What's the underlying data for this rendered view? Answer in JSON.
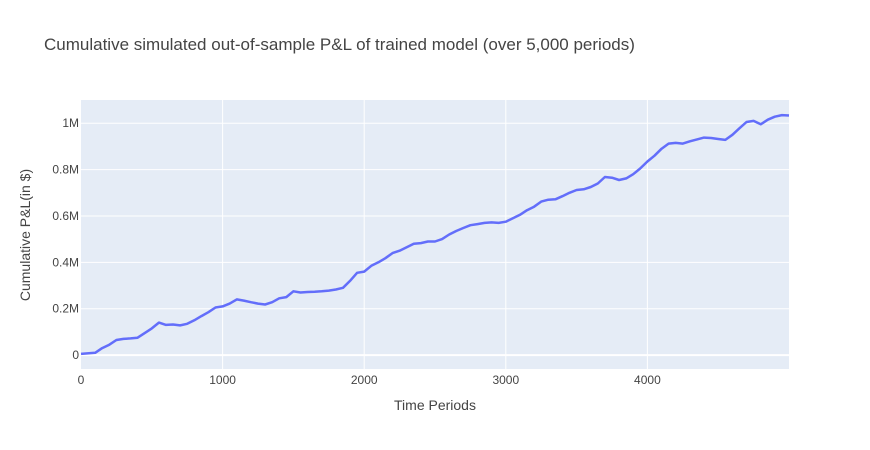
{
  "chart_data": {
    "type": "line",
    "title": "Cumulative simulated out-of-sample P&L of trained model (over 5,000 periods)",
    "xlabel": "Time Periods",
    "ylabel": "Cumulative P&L(in $)",
    "xlim": [
      0,
      5000
    ],
    "ylim": [
      -60000,
      1100000
    ],
    "x_ticks": [
      0,
      1000,
      2000,
      3000,
      4000
    ],
    "x_tick_labels": [
      "0",
      "1000",
      "2000",
      "3000",
      "4000"
    ],
    "y_ticks": [
      0,
      200000,
      400000,
      600000,
      800000,
      1000000
    ],
    "y_tick_labels": [
      "0",
      "0.2M",
      "0.4M",
      "0.6M",
      "0.8M",
      "1M"
    ],
    "grid": true,
    "background_color": "#e5ecf6",
    "line_color": "#636efa",
    "series": [
      {
        "x": [
          0,
          100,
          150,
          200,
          250,
          300,
          350,
          400,
          450,
          500,
          550,
          600,
          650,
          700,
          750,
          800,
          850,
          900,
          950,
          1000,
          1050,
          1100,
          1150,
          1200,
          1250,
          1300,
          1350,
          1400,
          1450,
          1500,
          1550,
          1600,
          1650,
          1700,
          1750,
          1800,
          1850,
          1900,
          1950,
          2000,
          2050,
          2100,
          2150,
          2200,
          2250,
          2300,
          2350,
          2400,
          2450,
          2500,
          2550,
          2600,
          2650,
          2700,
          2750,
          2800,
          2850,
          2900,
          2950,
          3000,
          3050,
          3100,
          3150,
          3200,
          3250,
          3300,
          3350,
          3400,
          3450,
          3500,
          3550,
          3600,
          3650,
          3700,
          3750,
          3800,
          3850,
          3900,
          3950,
          4000,
          4050,
          4100,
          4150,
          4200,
          4250,
          4300,
          4350,
          4400,
          4450,
          4500,
          4550,
          4600,
          4650,
          4700,
          4750,
          4800,
          4850,
          4900,
          4950,
          5000
        ],
        "values": [
          5000,
          10000,
          30000,
          45000,
          65000,
          70000,
          72000,
          75000,
          95000,
          115000,
          140000,
          130000,
          132000,
          128000,
          135000,
          150000,
          168000,
          185000,
          205000,
          210000,
          222000,
          240000,
          235000,
          228000,
          222000,
          218000,
          228000,
          245000,
          250000,
          275000,
          270000,
          272000,
          273000,
          275000,
          278000,
          283000,
          290000,
          320000,
          355000,
          360000,
          385000,
          400000,
          418000,
          440000,
          450000,
          465000,
          480000,
          483000,
          490000,
          490000,
          500000,
          520000,
          535000,
          548000,
          560000,
          565000,
          570000,
          572000,
          570000,
          575000,
          590000,
          605000,
          625000,
          640000,
          662000,
          670000,
          672000,
          685000,
          700000,
          712000,
          715000,
          725000,
          740000,
          768000,
          765000,
          755000,
          762000,
          780000,
          805000,
          835000,
          860000,
          890000,
          912000,
          915000,
          912000,
          922000,
          930000,
          938000,
          936000,
          932000,
          928000,
          950000,
          978000,
          1005000,
          1010000,
          995000,
          1015000,
          1028000,
          1035000,
          1033000
        ]
      }
    ]
  }
}
